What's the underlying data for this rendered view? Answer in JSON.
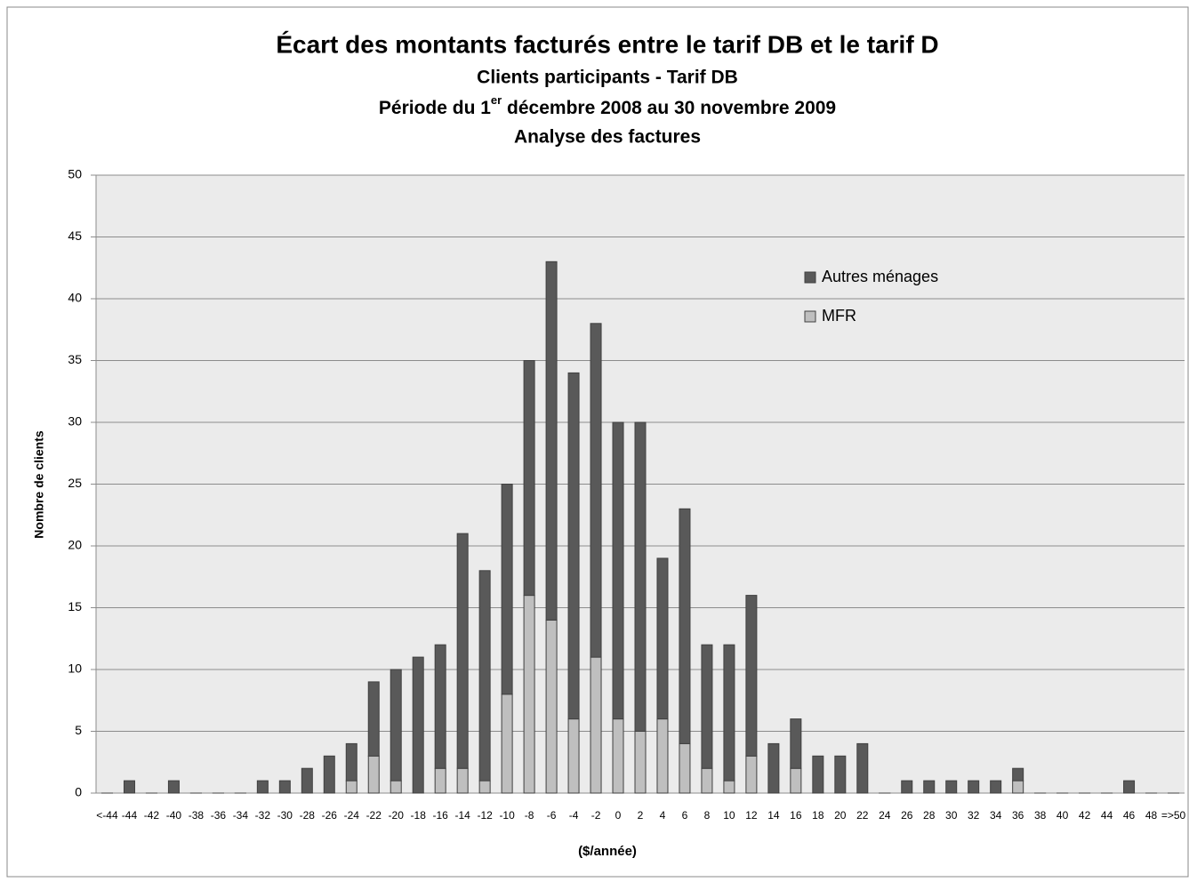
{
  "chart_data": {
    "type": "stacked_bar",
    "title": "Écart des montants facturés entre le tarif DB et le tarif D",
    "subtitle": "Clients participants - Tarif DB",
    "period": {
      "before": "Période du 1",
      "sup": "er",
      "after": " décembre 2008 au 30 novembre 2009"
    },
    "subtitle_2": "Analyse des factures",
    "x_label": "($/année)",
    "y_label": "Nombre de clients",
    "categories": [
      "<-44",
      "-44",
      "-42",
      "-40",
      "-38",
      "-36",
      "-34",
      "-32",
      "-30",
      "-28",
      "-26",
      "-24",
      "-22",
      "-20",
      "-18",
      "-16",
      "-14",
      "-12",
      "-10",
      "-8",
      "-6",
      "-4",
      "-2",
      "0",
      "2",
      "4",
      "6",
      "8",
      "10",
      "12",
      "14",
      "16",
      "18",
      "20",
      "22",
      "24",
      "26",
      "28",
      "30",
      "32",
      "34",
      "36",
      "38",
      "40",
      "42",
      "44",
      "46",
      "48",
      "=>50"
    ],
    "series": [
      {
        "name": "MFR",
        "color": "#bfbfbf",
        "values": [
          0,
          0,
          0,
          0,
          0,
          0,
          0,
          0,
          0,
          0,
          0,
          1,
          3,
          1,
          0,
          2,
          2,
          1,
          8,
          16,
          14,
          6,
          11,
          6,
          5,
          6,
          4,
          2,
          1,
          3,
          0,
          2,
          0,
          0,
          0,
          0,
          0,
          0,
          0,
          0,
          0,
          1,
          0,
          0,
          0,
          0,
          0,
          0,
          0
        ]
      },
      {
        "name": "Autres ménages",
        "color": "#595959",
        "values": [
          0,
          1,
          0,
          1,
          0,
          0,
          0,
          1,
          1,
          2,
          3,
          3,
          6,
          9,
          11,
          10,
          19,
          17,
          17,
          19,
          29,
          28,
          27,
          24,
          25,
          13,
          19,
          10,
          11,
          13,
          4,
          4,
          3,
          3,
          4,
          0,
          1,
          1,
          1,
          1,
          1,
          1,
          0,
          0,
          0,
          0,
          1,
          0,
          0
        ]
      }
    ],
    "ylim": [
      0,
      50
    ],
    "yticks": [
      0,
      5,
      10,
      15,
      20,
      25,
      30,
      35,
      40,
      45,
      50
    ],
    "grid": true,
    "legend": "upper right"
  }
}
